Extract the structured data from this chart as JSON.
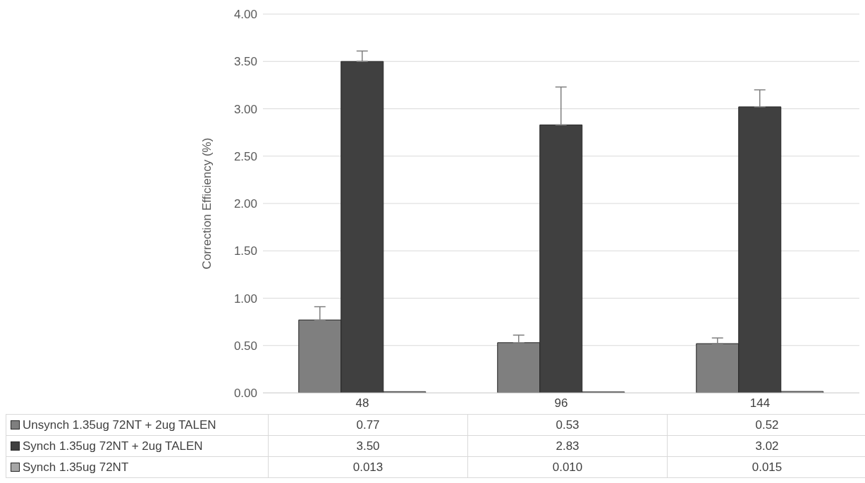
{
  "chart_data": {
    "type": "bar",
    "ylabel": "Correction Efficiency (%)",
    "categories": [
      "48",
      "96",
      "144"
    ],
    "series": [
      {
        "name": "Unsynch 1.35ug 72NT + 2ug TALEN",
        "color": "#7f7f7f",
        "values": [
          0.77,
          0.53,
          0.52
        ],
        "value_labels": [
          "0.77",
          "0.53",
          "0.52"
        ],
        "errors": [
          [
            0.77,
            0.91
          ],
          [
            0.53,
            0.61
          ],
          [
            0.52,
            0.58
          ]
        ]
      },
      {
        "name": "Synch 1.35ug 72NT + 2ug TALEN",
        "color": "#404040",
        "values": [
          3.5,
          2.83,
          3.02
        ],
        "value_labels": [
          "3.50",
          "2.83",
          "3.02"
        ],
        "errors": [
          [
            3.5,
            3.61
          ],
          [
            2.83,
            3.23
          ],
          [
            3.02,
            3.2
          ]
        ]
      },
      {
        "name": "Synch 1.35ug 72NT",
        "color": "#a6a6a6",
        "values": [
          0.013,
          0.01,
          0.015
        ],
        "value_labels": [
          "0.013",
          "0.010",
          "0.015"
        ]
      }
    ],
    "ylim": [
      0,
      4
    ],
    "yticks": [
      {
        "value": 0,
        "label": "0.00"
      },
      {
        "value": 0.5,
        "label": "0.50"
      },
      {
        "value": 1,
        "label": "1.00"
      },
      {
        "value": 1.5,
        "label": "1.50"
      },
      {
        "value": 2,
        "label": "2.00"
      },
      {
        "value": 2.5,
        "label": "2.50"
      },
      {
        "value": 3,
        "label": "3.00"
      },
      {
        "value": 3.5,
        "label": "3.50"
      },
      {
        "value": 4,
        "label": "4.00"
      }
    ],
    "grid": "y",
    "legend": "bottom"
  }
}
